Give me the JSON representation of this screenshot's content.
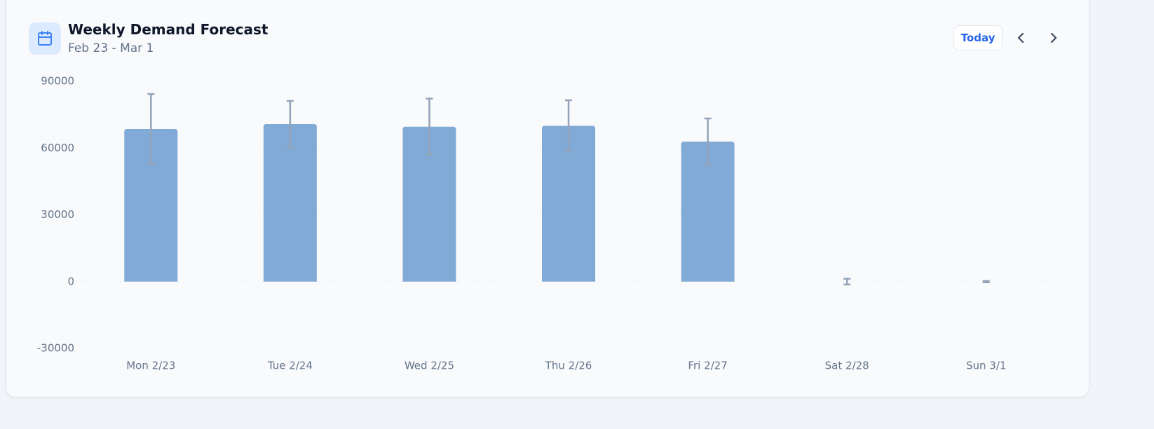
{
  "chart_data": {
    "type": "bar",
    "title": "Weekly Demand Forecast",
    "subtitle": "Feb 23 - Mar 1",
    "categories": [
      "Mon 2/23",
      "Tue 2/24",
      "Wed 2/25",
      "Thu 2/26",
      "Fri 2/27",
      "Sat 2/28",
      "Sun 3/1"
    ],
    "series": [
      {
        "color": "#82aad6",
        "error_color": "#94a3b8",
        "values": [
          68600,
          70800,
          69600,
          70000,
          62900,
          0,
          0
        ],
        "errors": [
          15700,
          10400,
          12600,
          11500,
          10400,
          1300,
          300
        ]
      }
    ],
    "ylim": [
      -30000,
      90000
    ],
    "yticks": [
      -30000,
      0,
      30000,
      60000,
      90000
    ],
    "grid": true
  },
  "controls": {
    "today": "Today"
  }
}
